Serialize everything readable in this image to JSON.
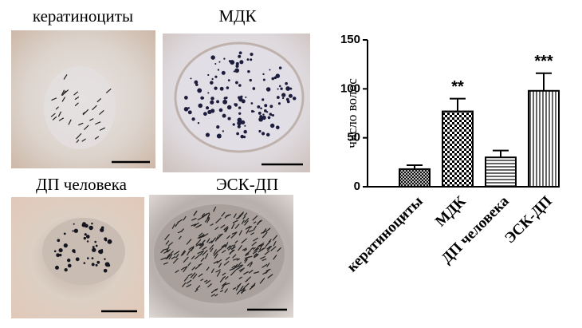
{
  "images": [
    {
      "label": "кератиноциты"
    },
    {
      "label": "МДК"
    },
    {
      "label": "ДП человека"
    },
    {
      "label": "ЭСК-ДП"
    }
  ],
  "chart_data": {
    "type": "bar",
    "ylabel": "число волос",
    "categories": [
      "кератиноциты",
      "МДК",
      "ДП человека",
      "ЭСК-ДП"
    ],
    "values": [
      18,
      77,
      30,
      98
    ],
    "errors": [
      4,
      13,
      7,
      18
    ],
    "value_annotations": [
      null,
      "**",
      null,
      "***"
    ],
    "ylim": [
      0,
      150
    ],
    "yticks": [
      0,
      50,
      100,
      150
    ],
    "color": "#000000"
  }
}
